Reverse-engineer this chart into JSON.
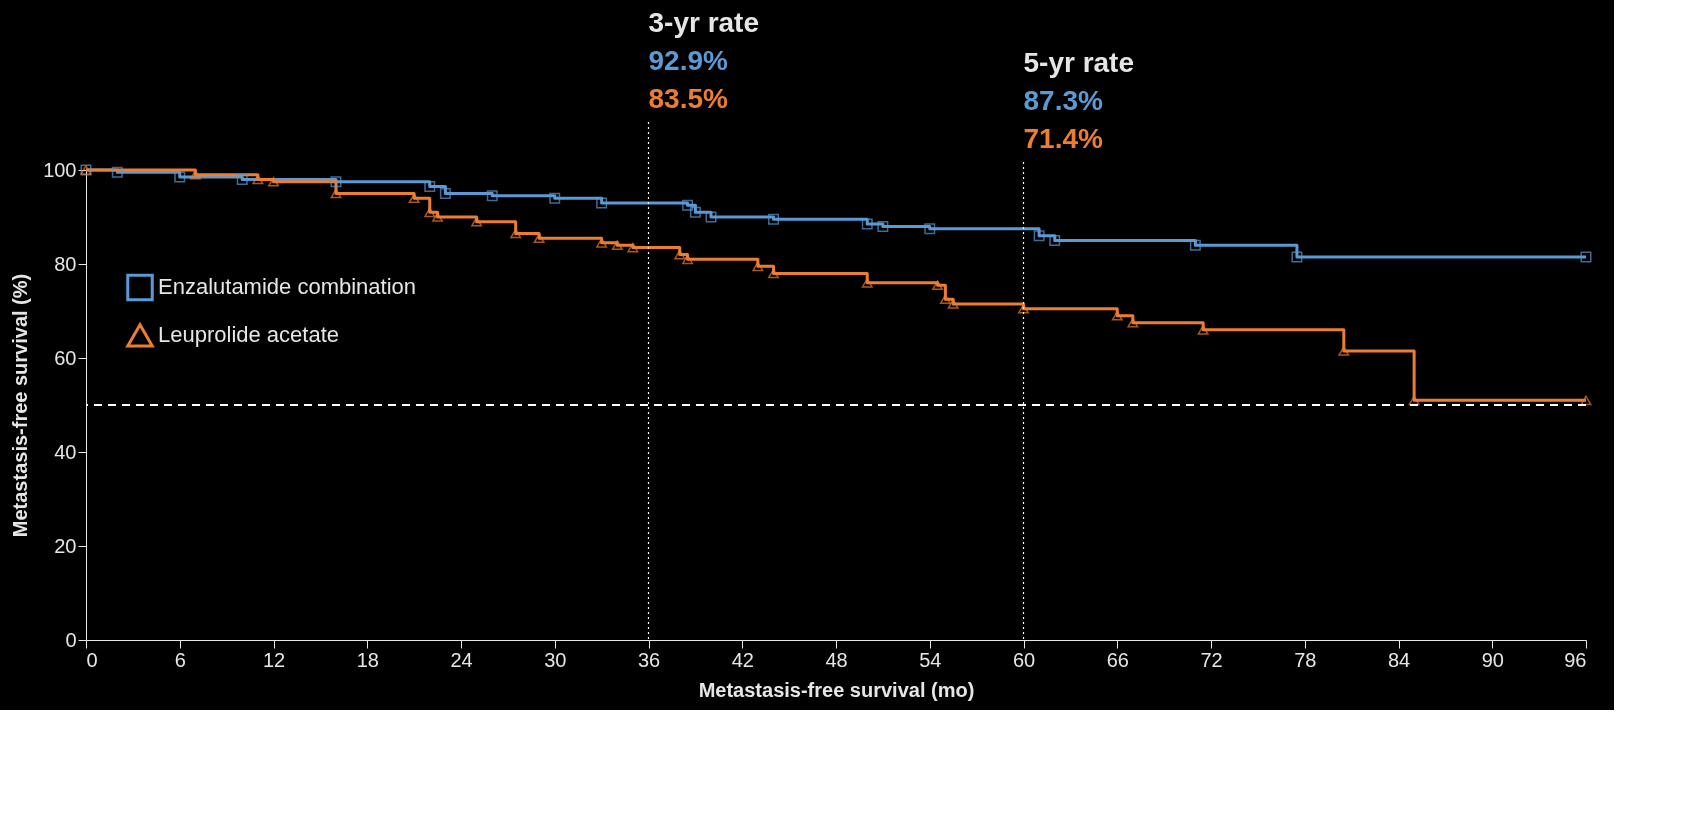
{
  "chart_data": {
    "type": "step",
    "xlabel": "Metastasis-free survival (mo)",
    "ylabel": "Metastasis-free survival (%)",
    "xlim": [
      0,
      96
    ],
    "xticks": [
      0,
      6,
      12,
      18,
      24,
      30,
      36,
      42,
      48,
      54,
      60,
      66,
      72,
      78,
      84,
      90,
      96
    ],
    "ylim": [
      0,
      100
    ],
    "yticks": [
      0,
      20,
      40,
      60,
      80,
      100
    ],
    "grid": false,
    "legend": "top left",
    "line_style": "solid",
    "series": [
      {
        "name": "Enzalutamide combination",
        "color": "#5b9bd5",
        "marker": "square",
        "x": [
          0,
          2,
          6,
          10,
          16,
          22,
          23,
          26,
          30,
          33,
          38.5,
          39,
          40,
          44,
          50,
          51,
          54,
          61,
          62,
          71,
          77.5,
          96
        ],
        "values": [
          100,
          99.5,
          98.5,
          98,
          97.5,
          96.5,
          95,
          94.5,
          94,
          93,
          92.5,
          91,
          90,
          89.5,
          88.5,
          88,
          87.5,
          86,
          85,
          84,
          81.5,
          81.5
        ]
      },
      {
        "name": "Leuprolide acetate",
        "color": "#ed7d31",
        "marker": "triangle",
        "x": [
          0,
          7,
          11,
          12,
          16,
          21,
          22,
          22.5,
          25,
          27.5,
          29,
          33,
          34,
          35,
          38,
          38.5,
          43,
          44,
          50,
          54.5,
          55,
          55.5,
          60,
          66,
          67,
          71.5,
          80.5,
          85,
          96
        ],
        "values": [
          100,
          99,
          98,
          97.5,
          95,
          94,
          91,
          90,
          89,
          86.5,
          85.5,
          84.5,
          84,
          83.5,
          82,
          81,
          79.5,
          78,
          76,
          75.5,
          72.5,
          71.5,
          70.5,
          69,
          67.5,
          66,
          61.5,
          51,
          51
        ]
      }
    ],
    "ref_lines": [
      {
        "axis": "y",
        "value": 50,
        "line_style": "dashed",
        "color": "#ffffff"
      },
      {
        "axis": "x",
        "value": 36,
        "label": "3-yr rate",
        "line_style": "dotted",
        "color": "#ffffff"
      },
      {
        "axis": "x",
        "value": 60,
        "label": "5-yr rate",
        "line_style": "dotted",
        "color": "#ffffff"
      }
    ],
    "annotations": [
      "92.9%",
      "83.5%",
      "87.3%",
      "71.4%"
    ]
  }
}
